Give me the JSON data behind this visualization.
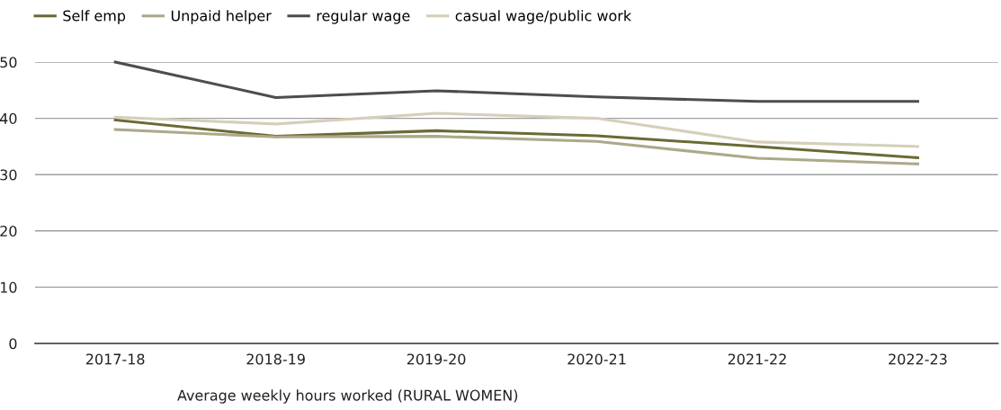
{
  "chart_data": {
    "type": "line",
    "title": "Average weekly hours worked (RURAL WOMEN)",
    "categories": [
      "2017-18",
      "2018-19",
      "2019-20",
      "2020-21",
      "2021-22",
      "2022-23"
    ],
    "series": [
      {
        "name": "Self emp",
        "color": "#6b6a35",
        "values": [
          39.7,
          36.8,
          37.8,
          36.9,
          35.0,
          33.0
        ]
      },
      {
        "name": "Unpaid helper",
        "color": "#aca98a",
        "values": [
          38.0,
          36.7,
          36.8,
          35.9,
          32.9,
          31.9
        ]
      },
      {
        "name": "regular wage",
        "color": "#4d4d4f",
        "values": [
          50.0,
          43.7,
          44.9,
          43.8,
          43.0,
          43.0
        ]
      },
      {
        "name": "casual wage/public work",
        "color": "#d5cfba",
        "values": [
          40.2,
          39.0,
          40.9,
          40.0,
          35.8,
          35.0
        ]
      }
    ],
    "ylim": [
      0,
      50
    ],
    "yticks": [
      0,
      10,
      20,
      30,
      40,
      50
    ],
    "grid": "y",
    "legend": "top left",
    "marker": "none",
    "line_style": "solid"
  }
}
